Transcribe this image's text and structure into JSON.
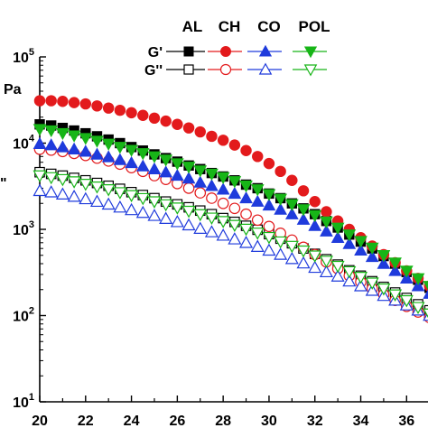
{
  "chart_data": {
    "type": "scatter",
    "title": "",
    "xlabel": "",
    "ylabel_fragments": [
      "Pa",
      "\""
    ],
    "x_ticks": [
      20,
      22,
      24,
      26,
      28,
      30,
      32,
      34,
      36
    ],
    "y_ticks": [
      {
        "value": 10,
        "base": "10",
        "exp": "1"
      },
      {
        "value": 100,
        "base": "10",
        "exp": "2"
      },
      {
        "value": 1000,
        "base": "10",
        "exp": "3"
      },
      {
        "value": 10000,
        "base": "10",
        "exp": "4"
      },
      {
        "value": 100000,
        "base": "10",
        "exp": "5"
      }
    ],
    "xlim": [
      20,
      37
    ],
    "ylim": [
      10,
      100000
    ],
    "y_scale": "log",
    "grid": false,
    "legend": {
      "placement": "top-right",
      "columns": [
        "AL",
        "CH",
        "CO",
        "POL"
      ],
      "rows": [
        "G'",
        "G''"
      ]
    },
    "colors": {
      "AL": "#000000",
      "CH": "#e31a1c",
      "CO": "#1f3bdc",
      "POL": "#17b517"
    },
    "x": [
      20,
      20.5,
      21,
      21.5,
      22,
      22.5,
      23,
      23.5,
      24,
      24.5,
      25,
      25.5,
      26,
      26.5,
      27,
      27.5,
      28,
      28.5,
      29,
      29.5,
      30,
      30.5,
      31,
      31.5,
      32,
      32.5,
      33,
      33.5,
      34,
      34.5,
      35,
      35.5,
      36,
      36.5,
      37
    ],
    "series": [
      {
        "name": "AL",
        "modulus": "G'",
        "marker": "square",
        "filled": true,
        "values": [
          16500,
          16000,
          15000,
          14000,
          13000,
          12000,
          11000,
          10000,
          9000,
          8200,
          7400,
          6700,
          6100,
          5500,
          5000,
          4500,
          4100,
          3700,
          3300,
          3000,
          2600,
          2300,
          2000,
          1750,
          1500,
          1250,
          1050,
          870,
          720,
          600,
          490,
          400,
          320,
          260,
          210
        ]
      },
      {
        "name": "CH",
        "modulus": "G'",
        "marker": "circle",
        "filled": true,
        "values": [
          31000,
          31000,
          30500,
          29500,
          28500,
          27000,
          25500,
          24000,
          22500,
          21000,
          19500,
          18000,
          16500,
          15000,
          13500,
          12000,
          10800,
          9500,
          8200,
          7000,
          5800,
          4700,
          3700,
          2800,
          2100,
          1600,
          1250,
          1000,
          800,
          640,
          510,
          410,
          330,
          270,
          220
        ]
      },
      {
        "name": "CO",
        "modulus": "G'",
        "marker": "triangle-up",
        "filled": true,
        "values": [
          9800,
          9500,
          9000,
          8500,
          8000,
          7400,
          6900,
          6400,
          5900,
          5400,
          5000,
          4600,
          4200,
          3900,
          3500,
          3200,
          2900,
          2600,
          2300,
          2100,
          1900,
          1700,
          1500,
          1300,
          1100,
          950,
          800,
          680,
          570,
          480,
          400,
          330,
          270,
          220,
          180
        ]
      },
      {
        "name": "POL",
        "modulus": "G'",
        "marker": "triangle-down",
        "filled": true,
        "values": [
          14500,
          14000,
          13000,
          12200,
          11400,
          10600,
          9800,
          9000,
          8300,
          7600,
          7000,
          6400,
          5800,
          5300,
          4800,
          4400,
          4000,
          3600,
          3200,
          2900,
          2550,
          2250,
          1950,
          1700,
          1450,
          1230,
          1040,
          870,
          730,
          610,
          500,
          410,
          330,
          270,
          220
        ]
      },
      {
        "name": "AL",
        "modulus": "G''",
        "marker": "square",
        "filled": false,
        "values": [
          4600,
          4400,
          4200,
          3950,
          3700,
          3450,
          3200,
          2950,
          2700,
          2500,
          2300,
          2100,
          1950,
          1800,
          1650,
          1500,
          1350,
          1220,
          1100,
          990,
          880,
          780,
          690,
          600,
          520,
          450,
          390,
          335,
          290,
          250,
          215,
          185,
          160,
          135,
          115
        ]
      },
      {
        "name": "CH",
        "modulus": "G''",
        "marker": "circle",
        "filled": false,
        "values": [
          8500,
          8300,
          8000,
          7600,
          7200,
          6700,
          6200,
          5700,
          5200,
          4700,
          4200,
          3800,
          3400,
          3000,
          2650,
          2300,
          2000,
          1750,
          1500,
          1280,
          1080,
          900,
          750,
          620,
          510,
          420,
          350,
          290,
          245,
          205,
          175,
          150,
          128,
          110,
          95
        ]
      },
      {
        "name": "CO",
        "modulus": "G''",
        "marker": "triangle-up",
        "filled": false,
        "values": [
          2800,
          2700,
          2550,
          2400,
          2250,
          2100,
          1950,
          1800,
          1680,
          1560,
          1440,
          1330,
          1220,
          1120,
          1020,
          930,
          850,
          770,
          700,
          630,
          570,
          510,
          455,
          405,
          360,
          320,
          285,
          250,
          220,
          195,
          170,
          150,
          132,
          115,
          100
        ]
      },
      {
        "name": "POL",
        "modulus": "G''",
        "marker": "triangle-down",
        "filled": false,
        "values": [
          4200,
          4000,
          3800,
          3580,
          3350,
          3120,
          2900,
          2680,
          2480,
          2290,
          2100,
          1940,
          1780,
          1630,
          1490,
          1360,
          1240,
          1120,
          1010,
          910,
          810,
          720,
          640,
          565,
          495,
          430,
          375,
          325,
          280,
          240,
          205,
          175,
          150,
          125,
          105
        ]
      }
    ]
  }
}
